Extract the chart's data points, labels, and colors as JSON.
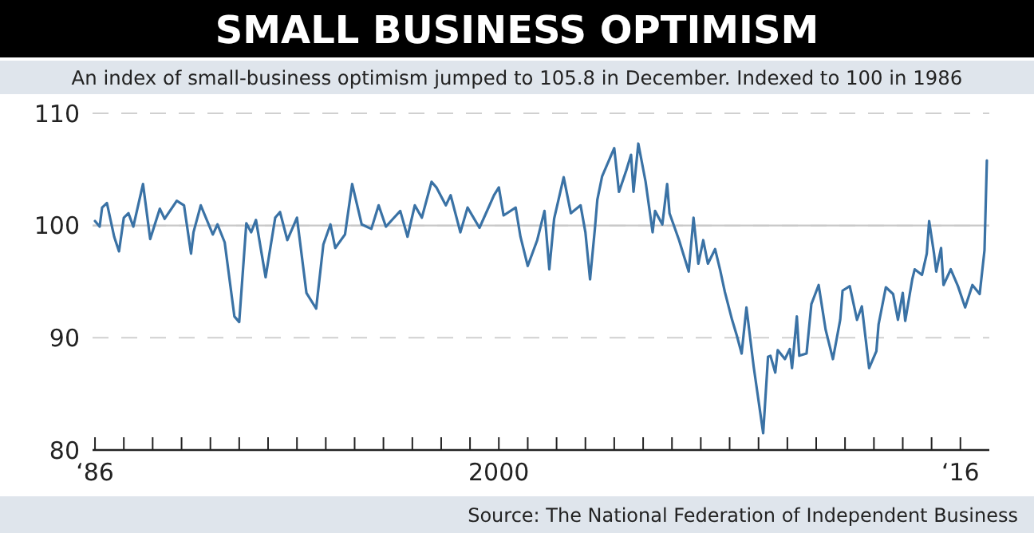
{
  "chart_data": {
    "type": "line",
    "title": "SMALL BUSINESS OPTIMISM",
    "subtitle": "An index of small-business optimism jumped to 105.8 in December. Indexed to 100 in 1986",
    "annotations": [
      "Source: The National Federation of Independent Business"
    ],
    "x": [
      "1986-01",
      "1986-03",
      "1986-04",
      "1986-06",
      "1986-09",
      "1986-11",
      "1987-01",
      "1987-03",
      "1987-05",
      "1987-09",
      "1987-12",
      "1988-04",
      "1988-06",
      "1988-11",
      "1989-02",
      "1989-05",
      "1989-06",
      "1989-09",
      "1990-02",
      "1990-04",
      "1990-07",
      "1990-11",
      "1991-01",
      "1991-04",
      "1991-06",
      "1991-08",
      "1991-12",
      "1992-04",
      "1992-06",
      "1992-09",
      "1993-01",
      "1993-05",
      "1993-09",
      "1993-12",
      "1994-03",
      "1994-05",
      "1994-09",
      "1994-12",
      "1995-04",
      "1995-08",
      "1995-11",
      "1996-02",
      "1996-05",
      "1996-08",
      "1996-11",
      "1997-02",
      "1997-05",
      "1997-09",
      "1997-11",
      "1998-03",
      "1998-05",
      "1998-09",
      "1998-12",
      "1999-05",
      "1999-11",
      "2000-01",
      "2000-03",
      "2000-08",
      "2000-10",
      "2001-01",
      "2001-05",
      "2001-08",
      "2001-10",
      "2001-12",
      "2002-04",
      "2002-07",
      "2002-11",
      "2003-01",
      "2003-03",
      "2003-05",
      "2003-06",
      "2003-08",
      "2004-01",
      "2004-03",
      "2004-06",
      "2004-08",
      "2004-09",
      "2004-11",
      "2005-02",
      "2005-05",
      "2005-06",
      "2005-09",
      "2005-11",
      "2005-12",
      "2006-04",
      "2006-08",
      "2006-10",
      "2006-12",
      "2007-02",
      "2007-04",
      "2007-07",
      "2007-09",
      "2007-11",
      "2008-02",
      "2008-04",
      "2008-06",
      "2008-08",
      "2008-11",
      "2009-03",
      "2009-05",
      "2009-06",
      "2009-08",
      "2009-09",
      "2009-12",
      "2010-02",
      "2010-03",
      "2010-05",
      "2010-06",
      "2010-09",
      "2010-11",
      "2011-02",
      "2011-05",
      "2011-08",
      "2011-11",
      "2011-12",
      "2012-03",
      "2012-06",
      "2012-08",
      "2012-11",
      "2013-02",
      "2013-03",
      "2013-06",
      "2013-09",
      "2013-11",
      "2014-01",
      "2014-02",
      "2014-05",
      "2014-06",
      "2014-09",
      "2014-11",
      "2014-12",
      "2015-02",
      "2015-03",
      "2015-05",
      "2015-06",
      "2015-09",
      "2015-12",
      "2016-03",
      "2016-06",
      "2016-09",
      "2016-11",
      "2016-12"
    ],
    "series": [
      {
        "color": "#3a72a5",
        "values": [
          100.4,
          99.9,
          101.6,
          102.0,
          99.0,
          97.7,
          100.7,
          101.1,
          99.9,
          103.7,
          98.8,
          101.5,
          100.6,
          102.2,
          101.8,
          97.5,
          99.4,
          101.8,
          99.2,
          100.1,
          98.5,
          91.9,
          91.4,
          100.2,
          99.4,
          100.5,
          95.4,
          100.7,
          101.2,
          98.7,
          100.7,
          94.0,
          92.6,
          98.3,
          100.1,
          98.0,
          99.2,
          103.7,
          100.1,
          99.7,
          101.8,
          99.9,
          100.6,
          101.3,
          99.0,
          101.8,
          100.7,
          103.9,
          103.4,
          101.8,
          102.7,
          99.4,
          101.6,
          99.8,
          102.7,
          103.4,
          100.9,
          101.6,
          99.0,
          96.4,
          98.7,
          101.3,
          96.1,
          100.6,
          104.3,
          101.1,
          101.8,
          99.4,
          95.2,
          99.7,
          102.3,
          104.4,
          106.9,
          103.0,
          104.9,
          106.3,
          103.0,
          107.3,
          103.9,
          99.4,
          101.3,
          100.1,
          103.7,
          101.1,
          98.7,
          95.9,
          100.7,
          96.6,
          98.7,
          96.6,
          97.9,
          96.1,
          94.1,
          91.6,
          90.2,
          88.6,
          92.7,
          87.4,
          81.5,
          88.3,
          88.4,
          86.9,
          88.9,
          88.1,
          89.0,
          87.3,
          91.9,
          88.4,
          88.6,
          93.0,
          94.7,
          90.7,
          88.1,
          91.6,
          94.2,
          94.6,
          91.6,
          92.8,
          87.3,
          88.8,
          91.2,
          94.5,
          93.9,
          91.6,
          94.0,
          91.5,
          95.2,
          96.1,
          95.6,
          97.5,
          100.4,
          97.5,
          95.9,
          98.0,
          94.7,
          96.1,
          94.6,
          92.7,
          94.7,
          93.9,
          97.8,
          105.8
        ]
      }
    ],
    "xlim": [
      "1985-12",
      "2017-01"
    ],
    "xticks": [
      {
        "value": "1986",
        "label": "‘86"
      },
      {
        "value": "1987",
        "label": null
      },
      {
        "value": "1988",
        "label": null
      },
      {
        "value": "1989",
        "label": null
      },
      {
        "value": "1990",
        "label": null
      },
      {
        "value": "1991",
        "label": null
      },
      {
        "value": "1992",
        "label": null
      },
      {
        "value": "1993",
        "label": null
      },
      {
        "value": "1994",
        "label": null
      },
      {
        "value": "1995",
        "label": null
      },
      {
        "value": "1996",
        "label": null
      },
      {
        "value": "1997",
        "label": null
      },
      {
        "value": "1998",
        "label": null
      },
      {
        "value": "1999",
        "label": null
      },
      {
        "value": "2000",
        "label": "2000"
      },
      {
        "value": "2001",
        "label": null
      },
      {
        "value": "2002",
        "label": null
      },
      {
        "value": "2003",
        "label": null
      },
      {
        "value": "2004",
        "label": null
      },
      {
        "value": "2005",
        "label": null
      },
      {
        "value": "2006",
        "label": null
      },
      {
        "value": "2007",
        "label": null
      },
      {
        "value": "2008",
        "label": null
      },
      {
        "value": "2009",
        "label": null
      },
      {
        "value": "2010",
        "label": null
      },
      {
        "value": "2011",
        "label": null
      },
      {
        "value": "2012",
        "label": null
      },
      {
        "value": "2013",
        "label": null
      },
      {
        "value": "2014",
        "label": null
      },
      {
        "value": "2015",
        "label": null
      },
      {
        "value": "2016",
        "label": "‘16"
      }
    ],
    "ylim": [
      80,
      110
    ],
    "yticks": [
      80,
      90,
      100,
      110
    ],
    "grid": "y",
    "ref_lines": [
      {
        "axis": "y",
        "value": 100,
        "color": "#c8c8c8"
      }
    ]
  }
}
